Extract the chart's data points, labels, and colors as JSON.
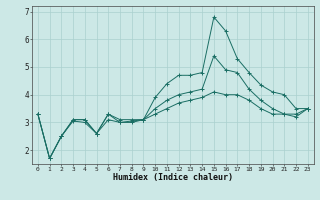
{
  "bg_color": "#cce8e6",
  "grid_color": "#aad0ce",
  "line_color": "#1a6e64",
  "xlabel": "Humidex (Indice chaleur)",
  "xlim": [
    -0.5,
    23.5
  ],
  "ylim": [
    1.5,
    7.2
  ],
  "yticks": [
    2,
    3,
    4,
    5,
    6,
    7
  ],
  "xticks": [
    0,
    1,
    2,
    3,
    4,
    5,
    6,
    7,
    8,
    9,
    10,
    11,
    12,
    13,
    14,
    15,
    16,
    17,
    18,
    19,
    20,
    21,
    22,
    23
  ],
  "lines": [
    {
      "x": [
        0,
        1,
        2,
        3,
        4,
        5,
        6,
        7,
        8,
        9,
        10,
        11,
        12,
        13,
        14,
        15,
        16,
        17,
        18,
        19,
        20,
        21,
        22,
        23
      ],
      "y": [
        3.3,
        1.7,
        2.5,
        3.1,
        3.1,
        2.6,
        3.3,
        3.1,
        3.1,
        3.1,
        3.9,
        4.4,
        4.7,
        4.7,
        4.8,
        6.8,
        6.3,
        5.3,
        4.8,
        4.35,
        4.1,
        4.0,
        3.5,
        3.5
      ]
    },
    {
      "x": [
        0,
        1,
        2,
        3,
        4,
        5,
        6,
        7,
        8,
        9,
        10,
        11,
        12,
        13,
        14,
        15,
        16,
        17,
        18,
        19,
        20,
        21,
        22,
        23
      ],
      "y": [
        3.3,
        1.7,
        2.5,
        3.1,
        3.1,
        2.6,
        3.3,
        3.0,
        3.0,
        3.1,
        3.5,
        3.8,
        4.0,
        4.1,
        4.2,
        5.4,
        4.9,
        4.8,
        4.2,
        3.8,
        3.5,
        3.3,
        3.3,
        3.5
      ]
    },
    {
      "x": [
        0,
        1,
        2,
        3,
        4,
        5,
        6,
        7,
        8,
        9,
        10,
        11,
        12,
        13,
        14,
        15,
        16,
        17,
        18,
        19,
        20,
        21,
        22,
        23
      ],
      "y": [
        3.3,
        1.7,
        2.5,
        3.05,
        3.0,
        2.6,
        3.1,
        3.0,
        3.05,
        3.1,
        3.3,
        3.5,
        3.7,
        3.8,
        3.9,
        4.1,
        4.0,
        4.0,
        3.8,
        3.5,
        3.3,
        3.3,
        3.2,
        3.5
      ]
    }
  ]
}
